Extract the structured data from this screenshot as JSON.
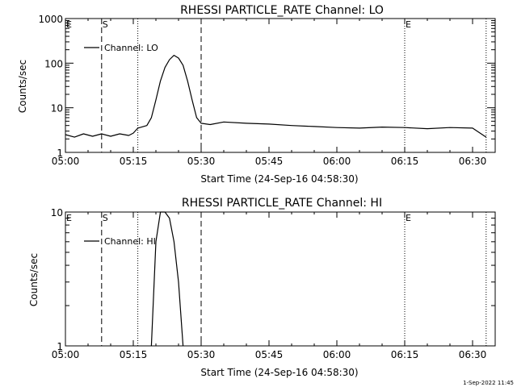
{
  "colors": {
    "background": "#ffffff",
    "ink": "#000000"
  },
  "footer": {
    "timestamp": "1-Sep-2022 11:45"
  },
  "chart_data": [
    {
      "type": "line",
      "title": "RHESSI PARTICLE_RATE Channel: LO",
      "xlabel": "Start Time (24-Sep-16 04:58:30)",
      "ylabel": "Counts/sec",
      "yscale": "log",
      "grid": false,
      "legend_position": "top-left",
      "xlim": [
        "05:00",
        "06:35"
      ],
      "ylim": [
        1,
        1000
      ],
      "x_ticks": [
        "05:00",
        "05:15",
        "05:30",
        "05:45",
        "06:00",
        "06:15",
        "06:30"
      ],
      "y_ticks": [
        "1",
        "10",
        "100",
        "1000"
      ],
      "markers": [
        {
          "label": "E",
          "time": "05:00",
          "style": "dotted"
        },
        {
          "label": "S",
          "time": "05:08",
          "style": "dashed"
        },
        {
          "label": "",
          "time": "05:16",
          "style": "dotted"
        },
        {
          "label": "",
          "time": "05:30",
          "style": "dashed"
        },
        {
          "label": "E",
          "time": "06:15",
          "style": "dotted"
        },
        {
          "label": "",
          "time": "06:33",
          "style": "dotted"
        }
      ],
      "series": [
        {
          "name": "Channel: LO",
          "x": [
            "05:00",
            "05:02",
            "05:04",
            "05:06",
            "05:08",
            "05:10",
            "05:12",
            "05:14",
            "05:15",
            "05:16",
            "05:18",
            "05:19",
            "05:20",
            "05:21",
            "05:22",
            "05:23",
            "05:24",
            "05:25",
            "05:26",
            "05:27",
            "05:28",
            "05:29",
            "05:30",
            "05:32",
            "05:35",
            "05:40",
            "05:45",
            "05:50",
            "05:55",
            "06:00",
            "06:05",
            "06:10",
            "06:15",
            "06:20",
            "06:25",
            "06:30",
            "06:33"
          ],
          "y": [
            2.5,
            2.2,
            2.6,
            2.3,
            2.6,
            2.3,
            2.6,
            2.4,
            2.7,
            3.5,
            4.0,
            6.0,
            15,
            40,
            80,
            120,
            150,
            130,
            90,
            40,
            15,
            6,
            4.5,
            4.2,
            4.8,
            4.5,
            4.3,
            4.0,
            3.8,
            3.6,
            3.5,
            3.7,
            3.6,
            3.4,
            3.6,
            3.5,
            2.2
          ]
        }
      ]
    },
    {
      "type": "line",
      "title": "RHESSI PARTICLE_RATE Channel: HI",
      "xlabel": "Start Time (24-Sep-16 04:58:30)",
      "ylabel": "Counts/sec",
      "yscale": "log",
      "grid": false,
      "legend_position": "top-left",
      "xlim": [
        "05:00",
        "06:35"
      ],
      "ylim": [
        1,
        10
      ],
      "x_ticks": [
        "05:00",
        "05:15",
        "05:30",
        "05:45",
        "06:00",
        "06:15",
        "06:30"
      ],
      "y_ticks": [
        "1",
        "10"
      ],
      "markers": [
        {
          "label": "E",
          "time": "05:00",
          "style": "dotted"
        },
        {
          "label": "S",
          "time": "05:08",
          "style": "dashed"
        },
        {
          "label": "",
          "time": "05:16",
          "style": "dotted"
        },
        {
          "label": "",
          "time": "05:30",
          "style": "dashed"
        },
        {
          "label": "E",
          "time": "06:15",
          "style": "dotted"
        },
        {
          "label": "",
          "time": "06:33",
          "style": "dotted"
        }
      ],
      "series": [
        {
          "name": "Channel: HI",
          "x": [
            "05:19",
            "05:20",
            "05:21",
            "05:22",
            "05:23",
            "05:24",
            "05:25",
            "05:26"
          ],
          "y": [
            1.0,
            6.0,
            10,
            10,
            9.0,
            6.0,
            3.0,
            1.0
          ]
        }
      ]
    }
  ]
}
